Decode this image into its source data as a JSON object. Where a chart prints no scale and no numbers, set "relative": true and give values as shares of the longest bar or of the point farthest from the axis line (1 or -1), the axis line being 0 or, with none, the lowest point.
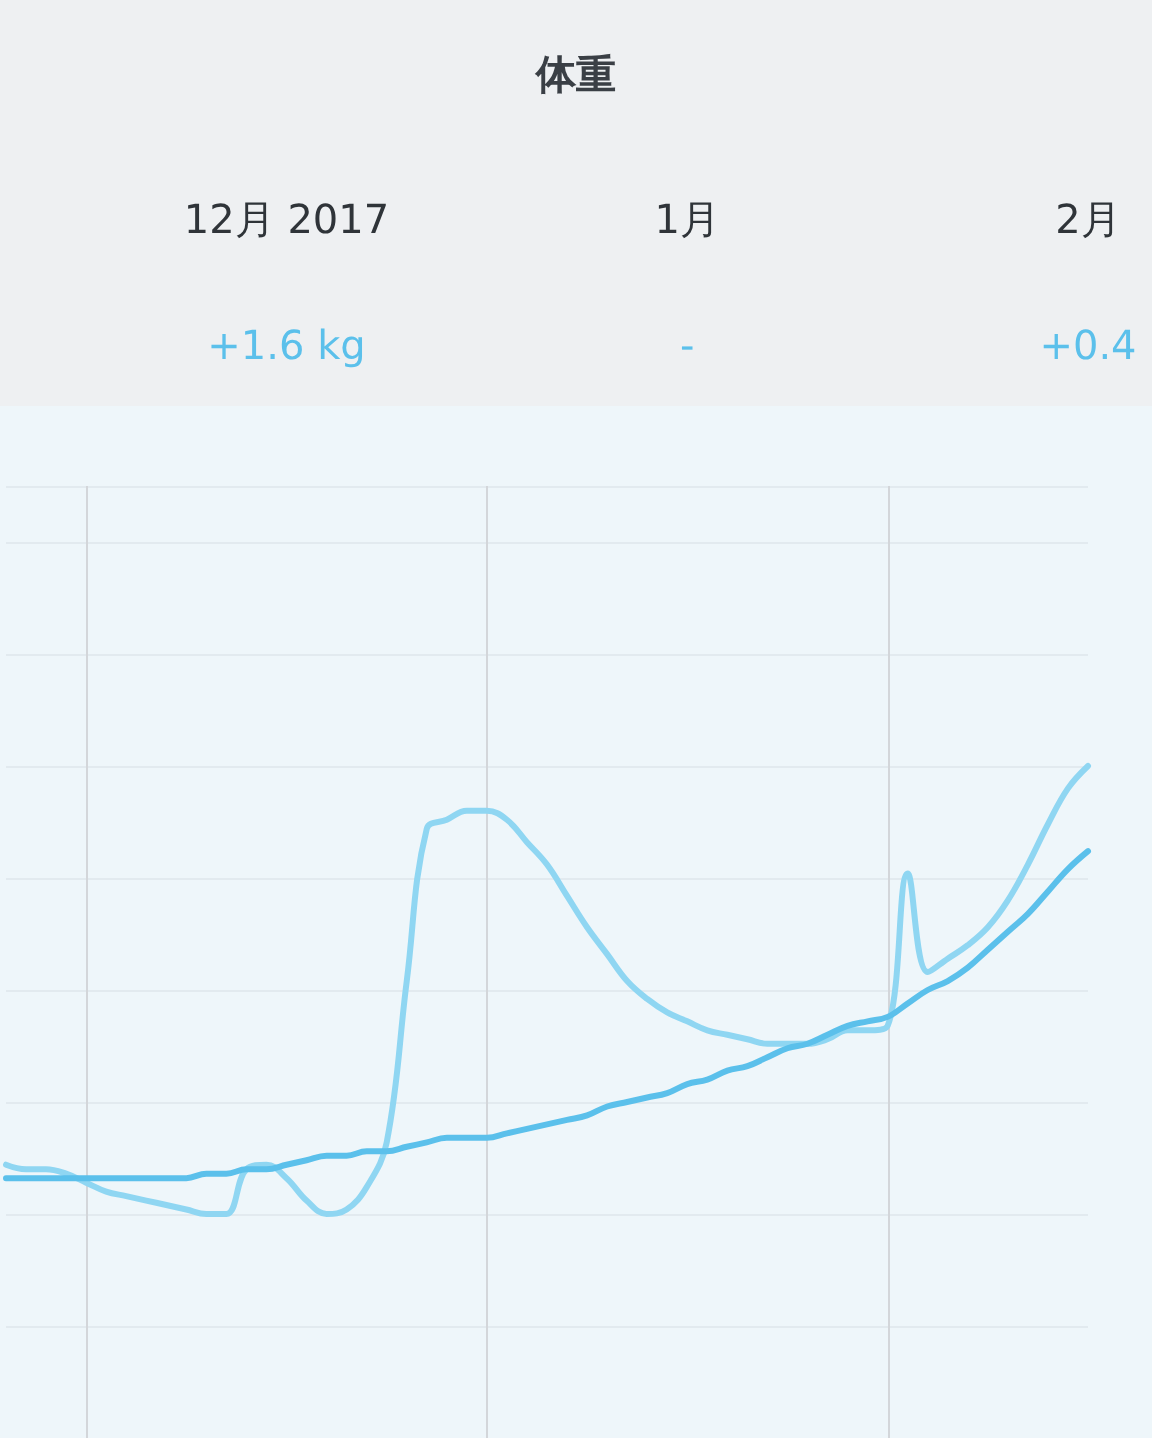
{
  "chart_data": {
    "type": "line",
    "title": "体重",
    "relative": true,
    "categories": [
      null,
      null,
      null,
      null,
      null,
      null,
      null,
      null,
      null,
      null,
      null,
      null,
      null,
      null,
      "12月 2017",
      null,
      null,
      null,
      null,
      null,
      null,
      null,
      null,
      null,
      null,
      null,
      null,
      null,
      null,
      null,
      null,
      null,
      null,
      null,
      "1月",
      null,
      null,
      null,
      null,
      null,
      null,
      null,
      null,
      null,
      null,
      null,
      null,
      null,
      null,
      null,
      null,
      null,
      null,
      null,
      "2月"
    ],
    "annotations": [
      "+1.6 kg",
      "-",
      "+0.4"
    ],
    "series": [
      {
        "color": "#8fd6f2",
        "values": [
          0.11,
          0.1,
          0.1,
          0.09,
          0.07,
          0.05,
          0.04,
          0.03,
          0.02,
          0.01,
          0.0,
          0.0,
          0.1,
          0.11,
          0.08,
          0.03,
          0,
          0.01,
          0.06,
          0.16,
          0.52,
          0.86,
          0.88,
          0.9,
          0.9,
          0.88,
          0.83,
          0.78,
          0.71,
          0.64,
          0.58,
          0.52,
          0.48,
          0.45,
          0.43,
          0.41,
          0.4,
          0.39,
          0.38,
          0.38,
          0.38,
          0.39,
          0.41,
          0.41,
          0.42,
          0.76,
          0.54,
          0.57,
          0.6,
          0.64,
          0.7,
          0.78,
          0.87,
          0.95,
          1
        ]
      },
      {
        "color": "#5bc0eb",
        "values": [
          0.08,
          0.08,
          0.08,
          0.08,
          0.08,
          0.08,
          0.08,
          0.08,
          0.08,
          0.08,
          0.09,
          0.09,
          0.1,
          0.1,
          0.11,
          0.12,
          0.13,
          0.13,
          0.14,
          0.14,
          0.15,
          0.16,
          0.17,
          0.17,
          0.17,
          0.18,
          0.19,
          0.2,
          0.21,
          0.22,
          0.24,
          0.25,
          0.26,
          0.27,
          0.29,
          0.3,
          0.32,
          0.33,
          0.35,
          0.37,
          0.38,
          0.4,
          0.42,
          0.43,
          0.44,
          0.47,
          0.5,
          0.52,
          0.55,
          0.59,
          0.63,
          0.67,
          0.72,
          0.77,
          0.81
        ]
      }
    ],
    "grid": true,
    "marker": "none",
    "line_style": "solid"
  }
}
